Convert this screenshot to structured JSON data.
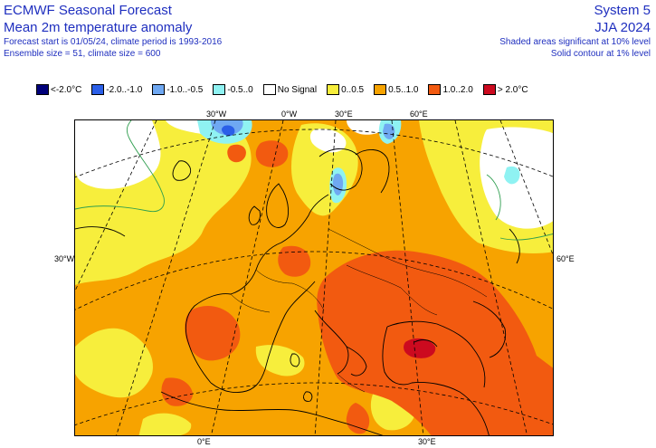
{
  "header": {
    "title": "ECMWF Seasonal Forecast",
    "subtitle": "Mean 2m temperature anomaly",
    "forecast_start": "Forecast start is 01/05/24, climate period is 1993-2016",
    "ensemble": "Ensemble size = 51, climate size = 600",
    "system": "System 5",
    "season": "JJA 2024",
    "significance_shaded": "Shaded areas significant at 10% level",
    "significance_contour": "Solid contour at 1% level"
  },
  "legend": [
    {
      "label": "<-2.0°C",
      "color": "#00007a"
    },
    {
      "label": "-2.0..-1.0",
      "color": "#2b5fe8"
    },
    {
      "label": "-1.0..-0.5",
      "color": "#6fa8f2"
    },
    {
      "label": "-0.5..0",
      "color": "#8ff2f2"
    },
    {
      "label": "No Signal",
      "color": "#ffffff"
    },
    {
      "label": "0..0.5",
      "color": "#f7ee3c"
    },
    {
      "label": "0.5..1.0",
      "color": "#f7a300"
    },
    {
      "label": "1.0..2.0",
      "color": "#f25a10"
    },
    {
      "label": "> 2.0°C",
      "color": "#cc0a1f"
    }
  ],
  "axis_labels": {
    "top": [
      "30°W",
      "0°W",
      "30°E",
      "60°E"
    ],
    "left": "30°W",
    "right": "60°E",
    "bottom": [
      "0°E",
      "30°E"
    ]
  }
}
